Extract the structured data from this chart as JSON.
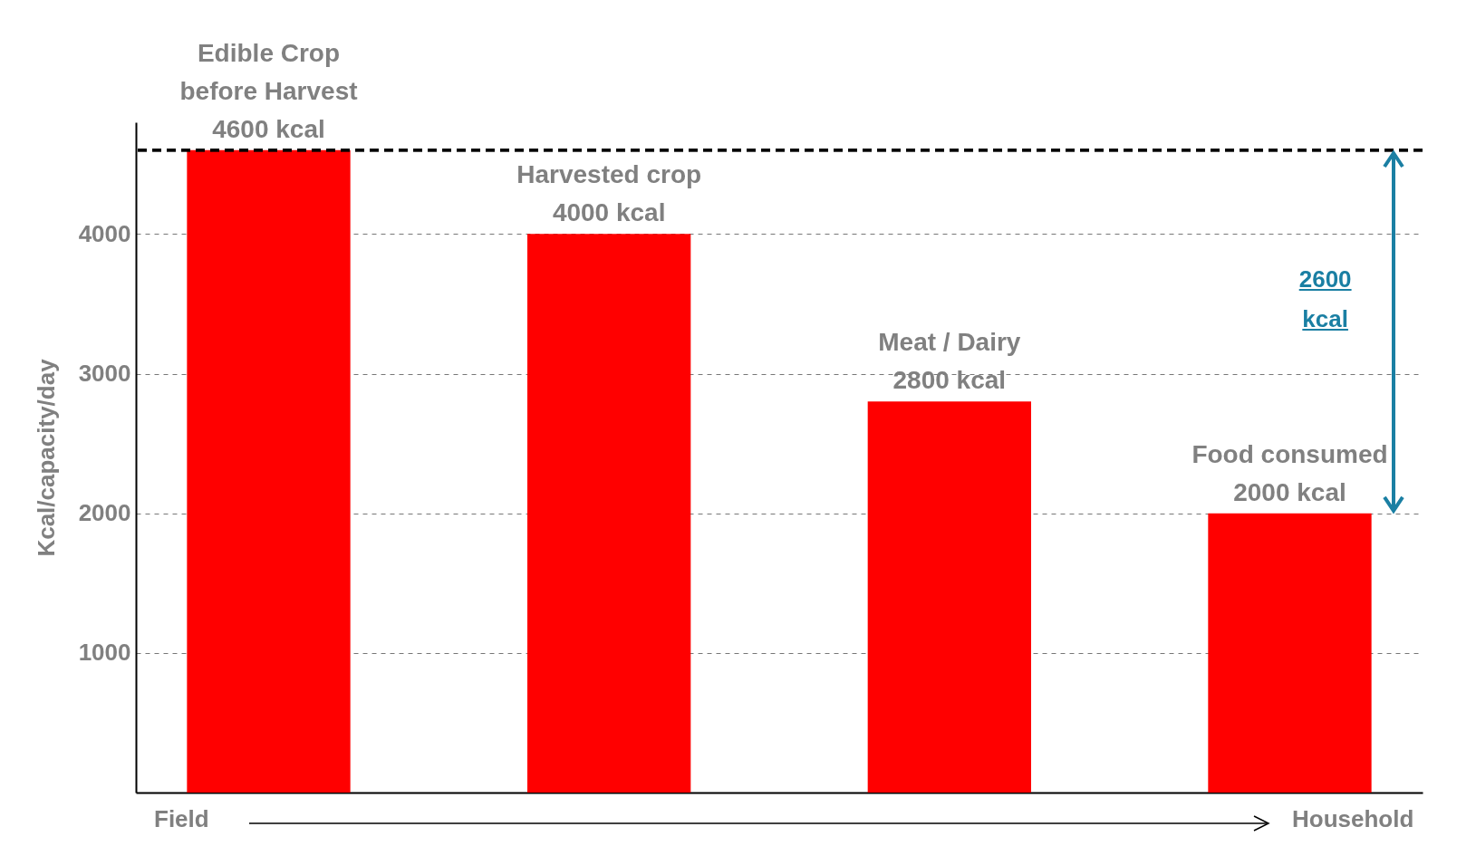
{
  "chart_data": {
    "type": "bar",
    "categories": [
      "Edible Crop before Harvest",
      "Harvested crop",
      "Meat / Dairy",
      "Food consumed"
    ],
    "values": [
      4600,
      4000,
      2800,
      2000
    ],
    "value_labels": [
      "4600 kcal",
      "4000 kcal",
      "2800 kcal",
      "2000 kcal"
    ],
    "color": "#ff0000",
    "ylabel": "Kcal/capacity/day",
    "ylim": [
      0,
      4800
    ],
    "yticks": [
      1000,
      2000,
      3000,
      4000
    ],
    "grid": "y",
    "tick_labels": "y",
    "ref_lines": [
      {
        "axis": "y",
        "value": 4600,
        "color": "#000000",
        "line_style": "dashed"
      }
    ],
    "annotations": [
      "Field",
      "Household",
      "2600 kcal"
    ]
  }
}
